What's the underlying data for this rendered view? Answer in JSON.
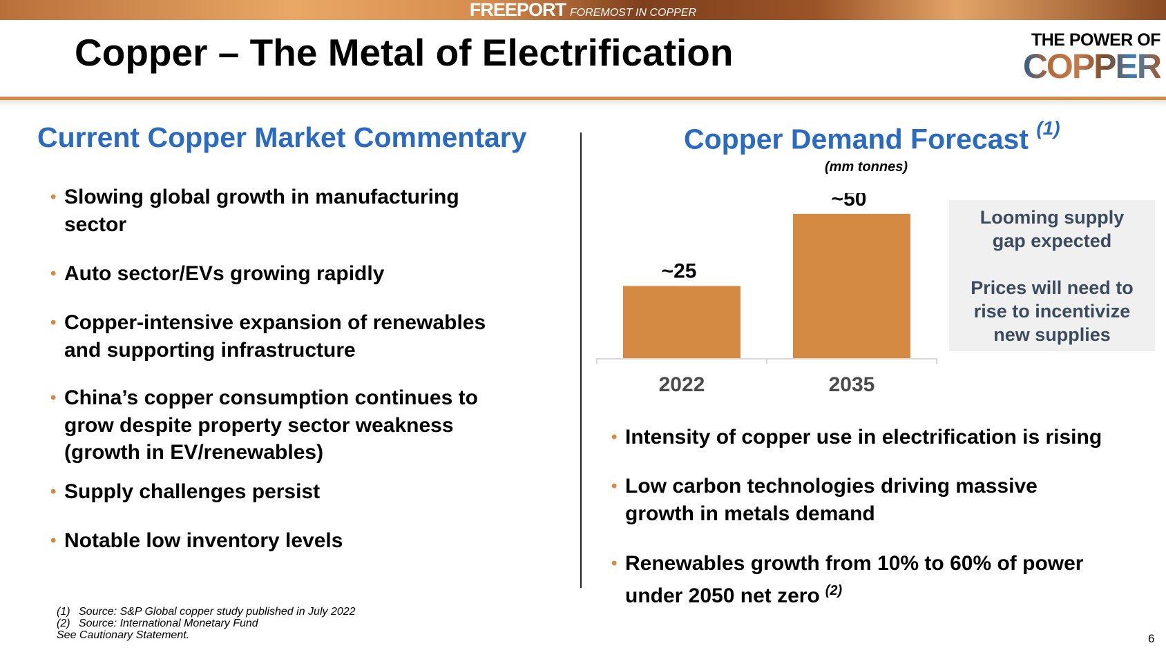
{
  "header": {
    "brand": "FREEPORT",
    "tagline": "FOREMOST IN COPPER",
    "title": "Copper – The Metal of Electrification",
    "logo_line1": "THE POWER OF",
    "logo_line2": "COPPER"
  },
  "left": {
    "heading": "Current Copper Market Commentary",
    "bullets": [
      [
        "Slowing global growth in manufacturing",
        "sector"
      ],
      [
        "Auto sector/EVs growing rapidly"
      ],
      [
        "Copper-intensive expansion of renewables",
        "and supporting infrastructure"
      ],
      [
        "China’s copper consumption continues to",
        "grow despite property sector weakness",
        "(growth in EV/renewables)"
      ],
      [
        "Supply challenges persist"
      ],
      [
        "Notable low inventory levels"
      ]
    ]
  },
  "right": {
    "heading": "Copper Demand Forecast",
    "heading_note": "(1)",
    "unit": "(mm tonnes)",
    "box_line1": "Looming supply",
    "box_line2": "gap expected",
    "box_line3": "Prices will need to",
    "box_line4": "rise to incentivize",
    "box_line5": "new supplies",
    "bullets": [
      [
        "Intensity of copper use in electrification is rising"
      ],
      [
        "Low carbon technologies driving massive",
        "growth in metals demand"
      ],
      [
        "Renewables growth from 10% to 60% of power",
        "under 2050 net zero"
      ]
    ],
    "bullet3_note": "(2)"
  },
  "chart_data": {
    "type": "bar",
    "categories": [
      "2022",
      "2035"
    ],
    "values": [
      25,
      50
    ],
    "data_labels": [
      "~25",
      "~50"
    ],
    "ylabel": "(mm tonnes)",
    "ylim": [
      0,
      55
    ],
    "grid": false,
    "bar_color": "#d58a44"
  },
  "footnotes": [
    {
      "n": "(1)",
      "text": "Source: S&P Global copper study published in July 2022"
    },
    {
      "n": "(2)",
      "text": "Source: International Monetary Fund"
    }
  ],
  "cautionary": "See Cautionary Statement.",
  "page_number": "6",
  "colors": {
    "accent": "#d58a44",
    "heading": "#2a6ac0"
  }
}
